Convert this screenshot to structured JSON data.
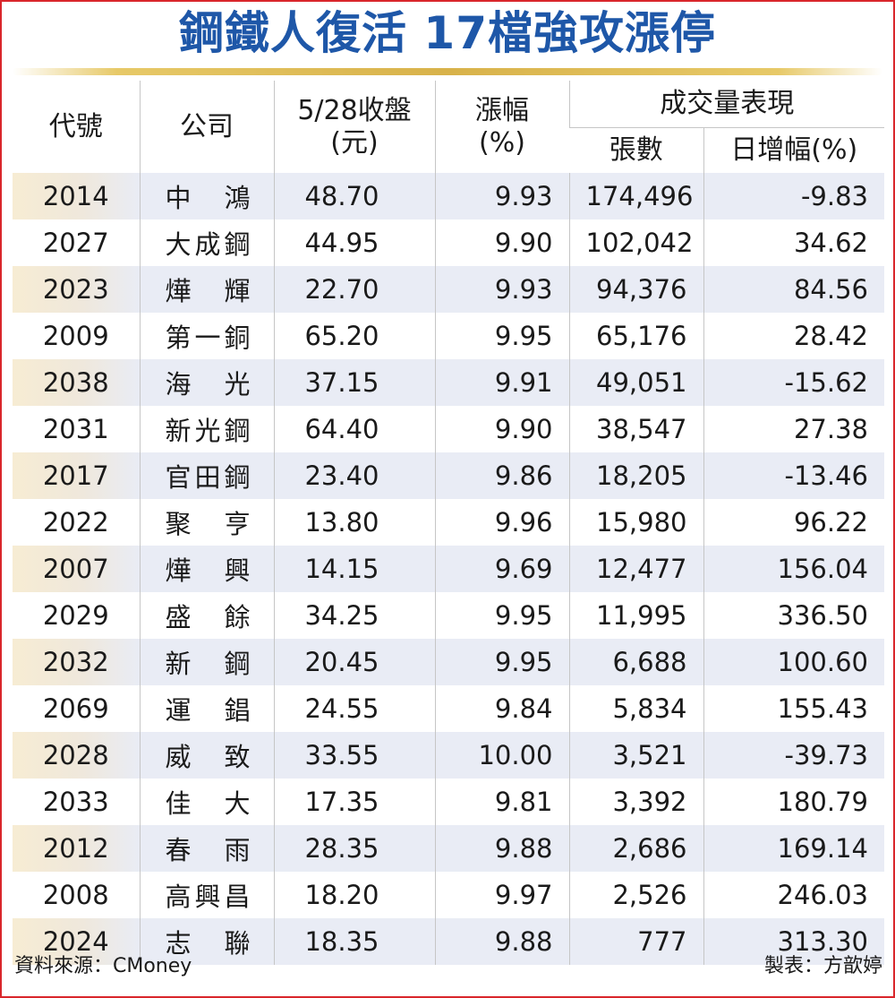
{
  "title": "鋼鐵人復活 17檔強攻漲停",
  "headers": {
    "code": "代號",
    "company": "公司",
    "close_line1": "5/28收盤",
    "close_line2": "(元)",
    "change_line1": "漲幅",
    "change_line2": "(%)",
    "volume_group": "成交量表現",
    "volume_lots": "張數",
    "volume_daily_change": "日增幅(%)"
  },
  "rows": [
    {
      "code": "2014",
      "name": "中　鴻",
      "close": "48.70",
      "change": "9.93",
      "lots": "174,496",
      "daily": "-9.83"
    },
    {
      "code": "2027",
      "name": "大成鋼",
      "close": "44.95",
      "change": "9.90",
      "lots": "102,042",
      "daily": "34.62"
    },
    {
      "code": "2023",
      "name": "燁　輝",
      "close": "22.70",
      "change": "9.93",
      "lots": "94,376",
      "daily": "84.56"
    },
    {
      "code": "2009",
      "name": "第一銅",
      "close": "65.20",
      "change": "9.95",
      "lots": "65,176",
      "daily": "28.42"
    },
    {
      "code": "2038",
      "name": "海　光",
      "close": "37.15",
      "change": "9.91",
      "lots": "49,051",
      "daily": "-15.62"
    },
    {
      "code": "2031",
      "name": "新光鋼",
      "close": "64.40",
      "change": "9.90",
      "lots": "38,547",
      "daily": "27.38"
    },
    {
      "code": "2017",
      "name": "官田鋼",
      "close": "23.40",
      "change": "9.86",
      "lots": "18,205",
      "daily": "-13.46"
    },
    {
      "code": "2022",
      "name": "聚　亨",
      "close": "13.80",
      "change": "9.96",
      "lots": "15,980",
      "daily": "96.22"
    },
    {
      "code": "2007",
      "name": "燁　興",
      "close": "14.15",
      "change": "9.69",
      "lots": "12,477",
      "daily": "156.04"
    },
    {
      "code": "2029",
      "name": "盛　餘",
      "close": "34.25",
      "change": "9.95",
      "lots": "11,995",
      "daily": "336.50"
    },
    {
      "code": "2032",
      "name": "新　鋼",
      "close": "20.45",
      "change": "9.95",
      "lots": "6,688",
      "daily": "100.60"
    },
    {
      "code": "2069",
      "name": "運　錩",
      "close": "24.55",
      "change": "9.84",
      "lots": "5,834",
      "daily": "155.43"
    },
    {
      "code": "2028",
      "name": "威　致",
      "close": "33.55",
      "change": "10.00",
      "lots": "3,521",
      "daily": "-39.73"
    },
    {
      "code": "2033",
      "name": "佳　大",
      "close": "17.35",
      "change": "9.81",
      "lots": "3,392",
      "daily": "180.79"
    },
    {
      "code": "2012",
      "name": "春　雨",
      "close": "28.35",
      "change": "9.88",
      "lots": "2,686",
      "daily": "169.14"
    },
    {
      "code": "2008",
      "name": "高興昌",
      "close": "18.20",
      "change": "9.97",
      "lots": "2,526",
      "daily": "246.03"
    },
    {
      "code": "2024",
      "name": "志　聯",
      "close": "18.35",
      "change": "9.88",
      "lots": "777",
      "daily": "313.30"
    }
  ],
  "footer": {
    "source": "資料來源：CMoney",
    "maker": "製表：方歆婷"
  },
  "colors": {
    "border": "#d9262b",
    "title": "#1e57a8",
    "row_shade": "#e9ecf5",
    "code_shade": "#f7ecd3",
    "gold_rule": "#d8b24a"
  }
}
